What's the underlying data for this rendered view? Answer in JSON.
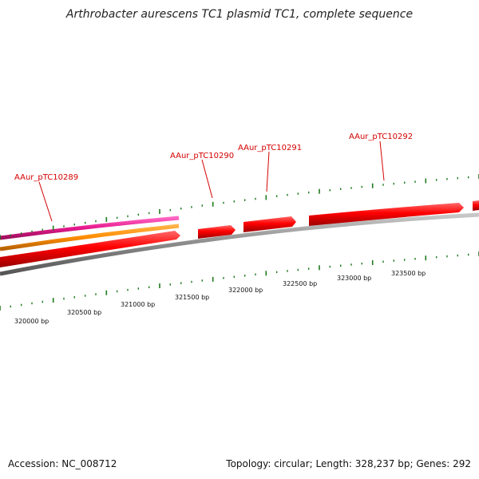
{
  "title": "Arthrobacter aurescens TC1 plasmid TC1, complete sequence",
  "footer": {
    "accession": "Accession: NC_008712",
    "summary": "Topology: circular; Length: 328,237 bp; Genes: 292"
  },
  "gene_labels": [
    {
      "id": "gene-1",
      "text": "AAur_pTC10289"
    },
    {
      "id": "gene-2",
      "text": "AAur_pTC10290"
    },
    {
      "id": "gene-3",
      "text": "AAur_pTC10291"
    },
    {
      "id": "gene-4",
      "text": "AAur_pTC10292"
    }
  ],
  "bp_labels": [
    "320000 bp",
    "320500 bp",
    "321000 bp",
    "321500 bp",
    "322000 bp",
    "322500 bp",
    "323000 bp",
    "323500 bp"
  ],
  "colors": {
    "gene": "#ff1a1a",
    "gene_dark": "#b30000",
    "backbone": "#808080",
    "magenta_track": "#e6198c",
    "orange_track": "#ff8c00",
    "tick": "#1f7a1f",
    "label": "#d40000"
  }
}
